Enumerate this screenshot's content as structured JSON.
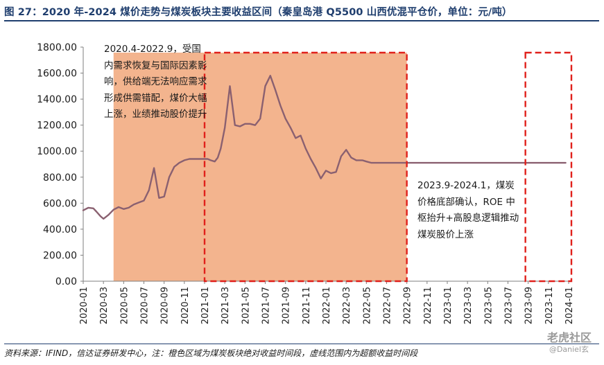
{
  "title": "图 27：2020 年-2024 煤价走势与煤炭板块主要收益区间（秦皇岛港 Q5500 山西优混平仓价，单位：元/吨）",
  "source": "资料来源：IFIND，信达证券研发中心，注：橙色区域为煤炭板块绝对收益时间段，虚线范围内为超额收益时间段",
  "watermark": "老虎社区",
  "watermark_sub": "@Daniel玄",
  "colors": {
    "line": "#8a6070",
    "shade": "#f3b48e",
    "dash": "#e0201b",
    "title": "#1f3e6e"
  },
  "chart_data": {
    "type": "line",
    "ylim": [
      0,
      1800
    ],
    "yticks": [
      "0.00",
      "200.00",
      "400.00",
      "600.00",
      "800.00",
      "1000.00",
      "1200.00",
      "1400.00",
      "1600.00",
      "1800.00"
    ],
    "xticks": [
      "2020-01",
      "2020-03",
      "2020-05",
      "2020-07",
      "2020-09",
      "2020-11",
      "2021-01",
      "2021-03",
      "2021-05",
      "2021-07",
      "2021-09",
      "2021-11",
      "2022-01",
      "2022-03",
      "2022-05",
      "2022-07",
      "2022-09",
      "2022-11",
      "2023-01",
      "2023-03",
      "2023-05",
      "2023-07",
      "2023-09",
      "2023-11",
      "2024-01"
    ],
    "series": [
      {
        "x": [
          0,
          0.5,
          1,
          1.3,
          1.7,
          2,
          2.5,
          3,
          3.5,
          4,
          4.5,
          5,
          5.5,
          6,
          6.5,
          7,
          7.5,
          8,
          8.5,
          9,
          9.5,
          10,
          10.5,
          11,
          11.5,
          12,
          12.3,
          12.6,
          13,
          13.3,
          13.6,
          14,
          14.5,
          15,
          15.5,
          16,
          16.5,
          17,
          17.5,
          18,
          18.5,
          19,
          19.5,
          20,
          20.5,
          21,
          21.5,
          22,
          22.5,
          23,
          23.5,
          24,
          24.5,
          25,
          25.5,
          26,
          26.5,
          27,
          27.3,
          27.6,
          28,
          28.5,
          29,
          29.5,
          30,
          30.5,
          31,
          31.5,
          32,
          32.5,
          33,
          33.5,
          34,
          34.5,
          35,
          35.5,
          36,
          36.5,
          47.7
        ],
        "values": [
          545,
          565,
          560,
          535,
          500,
          480,
          510,
          550,
          570,
          555,
          565,
          590,
          605,
          620,
          700,
          870,
          640,
          650,
          800,
          880,
          910,
          930,
          940,
          940,
          940,
          940,
          940,
          930,
          920,
          950,
          1020,
          1180,
          1500,
          1200,
          1190,
          1210,
          1210,
          1200,
          1250,
          1500,
          1580,
          1470,
          1350,
          1250,
          1180,
          1100,
          1120,
          1020,
          940,
          870,
          790,
          850,
          830,
          840,
          960,
          1010,
          950,
          930,
          930,
          930,
          920,
          910,
          910,
          910,
          910,
          910,
          910,
          910,
          910,
          910,
          910,
          910,
          910,
          910,
          910,
          910,
          910,
          910,
          910
        ]
      }
    ],
    "shaded_region": {
      "from": "2020-04",
      "to": "2022-09"
    },
    "dashed_regions": [
      {
        "from": "2021-01",
        "to": "2022-09"
      },
      {
        "from": "2023-09",
        "to": "2024-01"
      }
    ],
    "annotations": [
      "2020.4-2022.9，受国内需求恢复与国际因素影响，供给端无法响应需求形成供需错配，煤价大幅上涨，业绩推动股价提升",
      "2023.9-2024.1，煤炭价格底部确认，ROE 中枢抬升+高股息逻辑推动煤炭股价上涨"
    ]
  }
}
